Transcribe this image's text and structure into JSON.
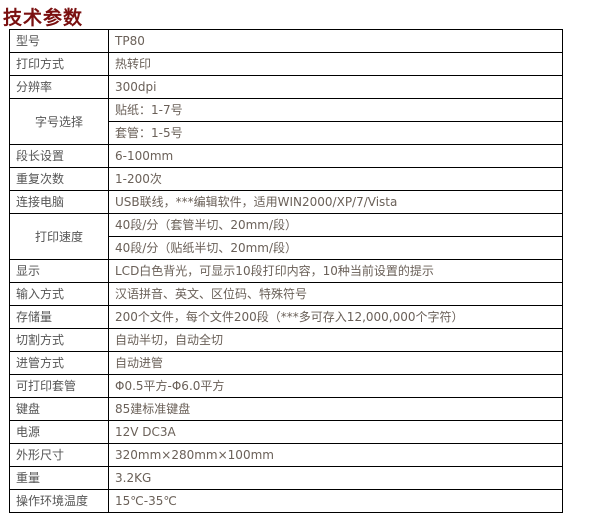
{
  "title": "技术参数",
  "rows": [
    {
      "label": "型号",
      "values": [
        "TP80"
      ]
    },
    {
      "label": "打印方式",
      "values": [
        "热转印"
      ]
    },
    {
      "label": "分辨率",
      "values": [
        "300dpi"
      ]
    },
    {
      "label": "字号选择",
      "values": [
        "贴纸：1-7号",
        "套管：1-5号"
      ]
    },
    {
      "label": "段长设置",
      "values": [
        "6-100mm"
      ]
    },
    {
      "label": "重复次数",
      "values": [
        "1-200次"
      ]
    },
    {
      "label": "连接电脑",
      "values": [
        "USB联线，***编辑软件，适用WIN2000/XP/7/Vista"
      ]
    },
    {
      "label": "打印速度",
      "values": [
        "40段/分（套管半切、20mm/段）",
        "40段/分（贴纸半切、20mm/段）"
      ]
    },
    {
      "label": "显示",
      "values": [
        "LCD白色背光，可显示10段打印内容，10种当前设置的提示"
      ]
    },
    {
      "label": "输入方式",
      "values": [
        "汉语拼音、英文、区位码、特殊符号"
      ]
    },
    {
      "label": "存储量",
      "values": [
        "200个文件，每个文件200段（***多可存入12,000,000个字符）"
      ]
    },
    {
      "label": "切割方式",
      "values": [
        "自动半切，自动全切"
      ]
    },
    {
      "label": "进管方式",
      "values": [
        "自动进管"
      ]
    },
    {
      "label": "可打印套管",
      "values": [
        "Φ0.5平方-Φ6.0平方"
      ]
    },
    {
      "label": "键盘",
      "values": [
        "85建标准键盘"
      ]
    },
    {
      "label": "电源",
      "values": [
        "12V DC3A"
      ]
    },
    {
      "label": "外形尺寸",
      "values": [
        "320mm×280mm×100mm"
      ]
    },
    {
      "label": "重量",
      "values": [
        "3.2KG"
      ]
    },
    {
      "label": "操作环境温度",
      "values": [
        "15℃-35℃"
      ]
    }
  ]
}
